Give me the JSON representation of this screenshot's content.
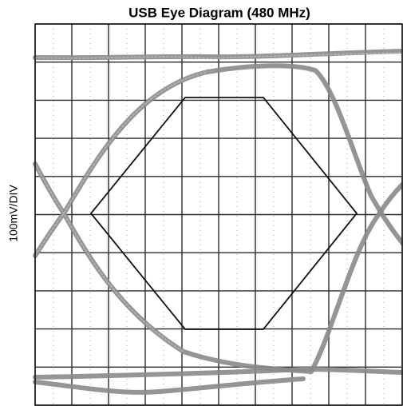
{
  "title": "USB Eye Diagram (480 MHz)",
  "y_label": "100mV/DIV"
}
